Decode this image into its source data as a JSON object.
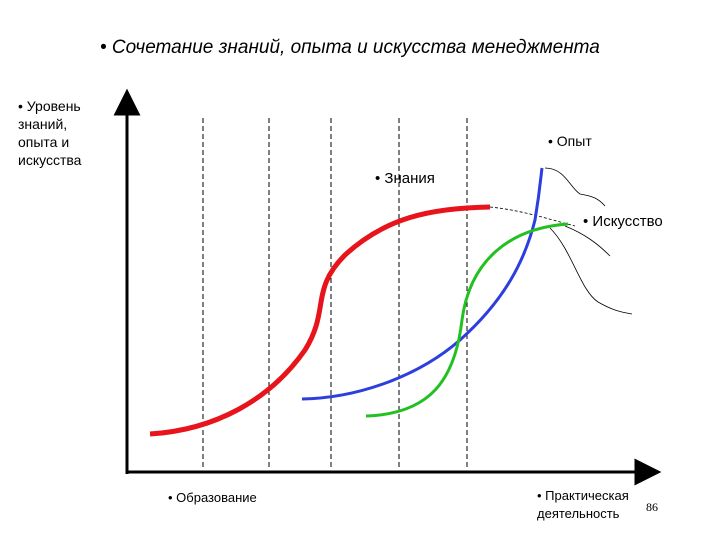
{
  "title": "• Сочетание знаний, опыта и искусства менеджмента",
  "y_axis_label": "• Уровень\nзнаний,\nопыта и\nискусства",
  "curves": {
    "knowledge": {
      "label": "• Знания",
      "color": "#e8141b"
    },
    "experience": {
      "label": "• Опыт",
      "color": "#2d3ede"
    },
    "art": {
      "label": "• Искусство",
      "color": "#22c021"
    }
  },
  "x_labels": {
    "education": "• Образование",
    "practice": "• Практическая\nдеятельность"
  },
  "page_number": "86",
  "colors": {
    "axis": "#000000",
    "dashed": "#000000",
    "forecast": "#000000"
  }
}
